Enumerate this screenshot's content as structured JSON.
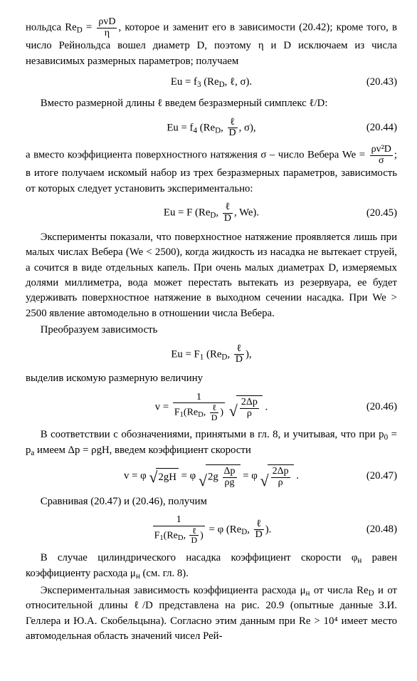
{
  "top_line": "нольдса Re",
  "top_sub": "D",
  "top_frac_num": "ρvD",
  "top_frac_den": "η",
  "top_after": ", которое и заменит его в зависимости (20.42); кроме того, в число Рейнольдса вошел диаметр D, поэтому η и D исключаем из числа независимых размерных параметров; получаем",
  "eq43_lhs": "Eu = f",
  "eq43_sub": "3",
  "eq43_args": "(Re",
  "eq43_args_sub": "D",
  "eq43_args_tail": ", ℓ, σ).",
  "eq43_num": "(20.43)",
  "para2": "Вместо размерной длины ℓ введем безразмерный симплекс ℓ/D:",
  "eq44_lhs": "Eu = f",
  "eq44_sub": "4",
  "eq44_open": "(Re",
  "eq44_open_sub": "D",
  "eq44_frac_num": "ℓ",
  "eq44_frac_den": "D",
  "eq44_close": ", σ),",
  "eq44_num": "(20.44)",
  "para3_a": "а вместо коэффициента поверхностного натяжения σ – число Вебера We = ",
  "we_frac_num": "ρv²D",
  "we_frac_den": "σ",
  "para3_b": "; в итоге получаем искомый набор из трех безразмерных параметров, зависимость от которых следует установить экспериментально:",
  "eq45_lhs": "Eu = F (Re",
  "eq45_sub": "D",
  "eq45_comma": ",",
  "eq45_frac_num": "ℓ",
  "eq45_frac_den": "D",
  "eq45_tail": ", We).",
  "eq45_num": "(20.45)",
  "para4": "Эксперименты показали, что поверхностное натяжение проявляется лишь при малых числах Вебера (We < 2500), когда жидкость из насадка не вытекает струей, а сочится в виде отдельных капель. При очень малых диаметрах D, измеряемых долями миллиметра, вода может перестать вытекать из резервуара, ее будет удерживать поверхностное натяжение в выходном сечении насадка. При We > 2500 явление автомодельно в отношении числа Вебера.",
  "para5": "Преобразуем зависимость",
  "eqF1_lhs": "Eu = F",
  "eqF1_sub": "1",
  "eqF1_open": "(Re",
  "eqF1_open_sub": "D",
  "eqF1_frac_num": "ℓ",
  "eqF1_frac_den": "D",
  "eqF1_close": "),",
  "para6": "выделив искомую размерную величину",
  "eq46_v": "v = ",
  "eq46_one": "1",
  "eq46_den_a": "F",
  "eq46_den_sub": "1",
  "eq46_den_b": "(Re",
  "eq46_den_bsub": "D",
  "eq46_den_fnum": "ℓ",
  "eq46_den_fden": "D",
  "eq46_den_c": ")",
  "eq46_sqrt_num": "2Δp",
  "eq46_sqrt_den": "ρ",
  "eq46_dot": " .",
  "eq46_num": "(20.46)",
  "para7_a": "В соответствии с обозначениями, принятыми в гл. 8, и учитывая, что при p",
  "para7_sub0": "0",
  "para7_b": " = p",
  "para7_suba": "a",
  "para7_c": " имеем Δp = ρgH, введем коэффициент скорости",
  "eq47_a": "v = φ",
  "eq47_sqrt1": "2gH",
  "eq47_eq1": " = φ",
  "eq47_sqrt2_pre": "2g ",
  "eq47_sqrt2_num": "Δp",
  "eq47_sqrt2_den": "ρg",
  "eq47_eq2": " = φ",
  "eq47_sqrt3_num": "2Δp",
  "eq47_sqrt3_den": "ρ",
  "eq47_dot": " .",
  "eq47_num": "(20.47)",
  "para8": "Сравнивая (20.47) и (20.46), получим",
  "eq48_num1": "1",
  "eq48_den_a": "F",
  "eq48_den_sub": "1",
  "eq48_den_b": "(Re",
  "eq48_den_bsub": "D",
  "eq48_den_fnum": "ℓ",
  "eq48_den_fden": "D",
  "eq48_den_c": ")",
  "eq48_rhs_a": " = φ (Re",
  "eq48_rhs_sub": "D",
  "eq48_rhs_fnum": "ℓ",
  "eq48_rhs_fden": "D",
  "eq48_rhs_c": ").",
  "eq48_num": "(20.48)",
  "para9_a": "В случае цилиндрического насадка коэффициент скорости φ",
  "para9_sub": "н",
  "para9_b": " равен коэффициенту расхода μ",
  "para9_sub2": "н",
  "para9_c": " (см. гл. 8).",
  "para10_a": "Экспериментальная зависимость коэффициента расхода μ",
  "para10_sub": "н",
  "para10_b": " от числа Re",
  "para10_sub2": "D",
  "para10_c": " и от относительной длины ℓ/D представлена на рис. 20.9 (опытные данные З.И. Геллера и Ю.А. Скобельцына). Согласно этим данным при Re > 10⁴ имеет место автомодельная область значений чисел Рей-"
}
